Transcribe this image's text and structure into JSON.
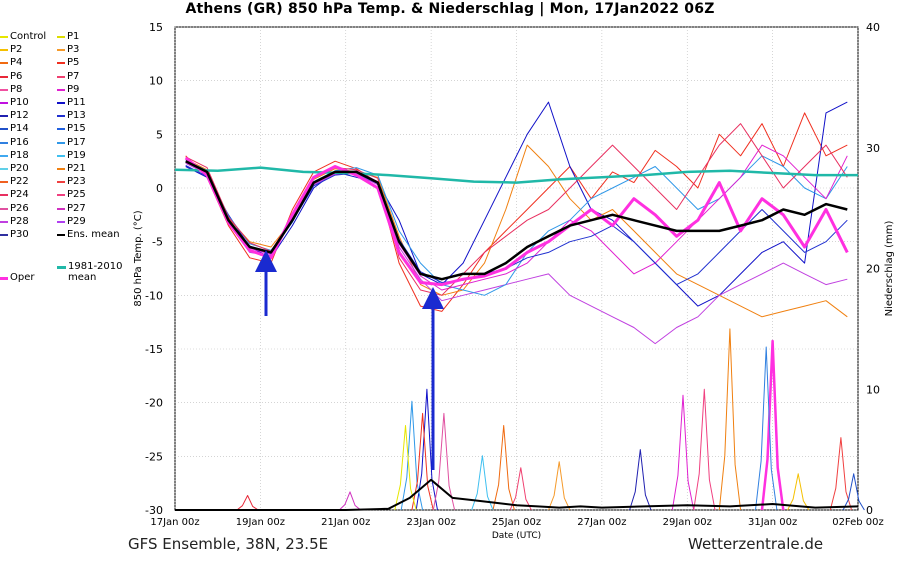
{
  "title": "Athens  (GR)  850 hPa Temp. & Niederschlag | Mon, 17Jan2022 06Z",
  "legend": [
    {
      "label": "Control",
      "color": "#e6e600"
    },
    {
      "label": "P1",
      "color": "#dddd00"
    },
    {
      "label": "P2",
      "color": "#f5c000"
    },
    {
      "label": "P3",
      "color": "#f59a2a"
    },
    {
      "label": "P4",
      "color": "#f06a10"
    },
    {
      "label": "P5",
      "color": "#f03020"
    },
    {
      "label": "P6",
      "color": "#e82838"
    },
    {
      "label": "P7",
      "color": "#f04070"
    },
    {
      "label": "P8",
      "color": "#f050a0"
    },
    {
      "label": "P9",
      "color": "#e020d0"
    },
    {
      "label": "P10",
      "color": "#c010e0"
    },
    {
      "label": "P11",
      "color": "#1010c8"
    },
    {
      "label": "P12",
      "color": "#2020b0"
    },
    {
      "label": "P13",
      "color": "#2030d0"
    },
    {
      "label": "P14",
      "color": "#2050c8"
    },
    {
      "label": "P15",
      "color": "#2060e0"
    },
    {
      "label": "P16",
      "color": "#3080e0"
    },
    {
      "label": "P17",
      "color": "#3098e8"
    },
    {
      "label": "P18",
      "color": "#40a8f0"
    },
    {
      "label": "P19",
      "color": "#40c0f0"
    },
    {
      "label": "P20",
      "color": "#60d0e8"
    },
    {
      "label": "P21",
      "color": "#f08010"
    },
    {
      "label": "P22",
      "color": "#f06020"
    },
    {
      "label": "P23",
      "color": "#f04040"
    },
    {
      "label": "P24",
      "color": "#e83060"
    },
    {
      "label": "P25",
      "color": "#f04080"
    },
    {
      "label": "P26",
      "color": "#e050a0"
    },
    {
      "label": "P27",
      "color": "#d030c0"
    },
    {
      "label": "P28",
      "color": "#c040e0"
    },
    {
      "label": "P29",
      "color": "#b040f0"
    },
    {
      "label": "P30",
      "color": "#3030a0"
    },
    {
      "label": "Ens. mean",
      "color": "#000000"
    }
  ],
  "legend_clim": {
    "label": "1981-2010\nmean",
    "color": "#20b8a8"
  },
  "legend_oper": {
    "label": "Oper",
    "color": "#ff30e0"
  },
  "footer_left": "GFS Ensemble, 38N, 23.5E",
  "footer_right": "Wetterzentrale.de",
  "chart_data": {
    "type": "line",
    "title": "Athens  (GR)  850 hPa Temp. & Niederschlag | Mon, 17Jan2022 06Z",
    "xlabel": "Date (UTC)",
    "ylabel": "850 hPa Temp. (°C)",
    "y2label": "Niederschlag (mm)",
    "xlim": [
      0,
      16
    ],
    "ylim": [
      -30,
      15
    ],
    "y2lim": [
      0,
      40
    ],
    "x_ticks": [
      0,
      2,
      4,
      6,
      8,
      10,
      12,
      14,
      16
    ],
    "x_tick_labels": [
      "17Jan 00z",
      "19Jan 00z",
      "21Jan 00z",
      "23Jan 00z",
      "25Jan 00z",
      "27Jan 00z",
      "29Jan 00z",
      "31Jan 00z",
      "02Feb 00z"
    ],
    "y_ticks": [
      15,
      10,
      5,
      0,
      -5,
      -10,
      -15,
      -20,
      -25,
      -30
    ],
    "y2_ticks": [
      40,
      30,
      20,
      10,
      0
    ],
    "grid": true,
    "ens_mean_temp": {
      "x": [
        0.25,
        0.75,
        1.25,
        1.75,
        2.25,
        2.75,
        3.25,
        3.75,
        4.25,
        4.75,
        5.25,
        5.75,
        6.25,
        6.75,
        7.25,
        7.75,
        8.25,
        8.75,
        9.25,
        9.75,
        10.25,
        10.75,
        11.25,
        11.75,
        12.25,
        12.75,
        13.25,
        13.75,
        14.25,
        14.75,
        15.25,
        15.75
      ],
      "y": [
        2.5,
        1.5,
        -3.0,
        -5.5,
        -6.0,
        -3.0,
        0.5,
        1.5,
        1.5,
        0.5,
        -5.0,
        -8.0,
        -8.5,
        -8.0,
        -8.0,
        -7.0,
        -5.5,
        -4.5,
        -3.5,
        -3.0,
        -2.5,
        -3.0,
        -3.5,
        -4.0,
        -4.0,
        -4.0,
        -3.5,
        -3.0,
        -2.0,
        -2.5,
        -1.5,
        -2.0
      ]
    },
    "oper_temp": {
      "x": [
        0.25,
        0.75,
        1.25,
        1.75,
        2.25,
        2.75,
        3.25,
        3.75,
        4.25,
        4.75,
        5.25,
        5.75,
        6.25,
        6.75,
        7.25,
        7.75,
        8.25,
        8.75,
        9.25,
        9.75,
        10.25,
        10.75,
        11.25,
        11.75,
        12.25,
        12.75,
        13.25,
        13.75,
        14.25,
        14.75,
        15.25,
        15.75
      ],
      "y": [
        2.8,
        1.2,
        -3.2,
        -5.8,
        -6.5,
        -2.5,
        1.0,
        2.0,
        1.2,
        0.0,
        -6.0,
        -8.8,
        -9.0,
        -8.5,
        -8.2,
        -7.5,
        -6.0,
        -5.0,
        -3.5,
        -2.0,
        -3.5,
        -1.0,
        -2.5,
        -4.5,
        -3.0,
        0.5,
        -4.0,
        -1.0,
        -2.5,
        -5.5,
        -2.0,
        -6.0
      ]
    },
    "clim_temp": {
      "x": [
        0,
        1,
        2,
        3,
        4,
        5,
        6,
        7,
        8,
        9,
        10,
        11,
        12,
        13,
        14,
        15,
        16
      ],
      "y": [
        1.7,
        1.6,
        1.9,
        1.5,
        1.4,
        1.2,
        0.9,
        0.6,
        0.5,
        0.8,
        1.0,
        1.2,
        1.5,
        1.6,
        1.4,
        1.2,
        1.2
      ]
    },
    "member_temp_series": [
      {
        "name": "P5",
        "color": "#f03020",
        "y": [
          3.0,
          1.0,
          -3.5,
          -6.5,
          -7.0,
          -2.0,
          1.5,
          2.5,
          1.8,
          0.5,
          -7.0,
          -11.0,
          -11.5,
          -9.0,
          -6.0,
          -4.0,
          -2.0,
          0.0,
          2.0,
          -1.0,
          1.5,
          0.5,
          3.5,
          2.0,
          0.0,
          5.0,
          3.0,
          6.0,
          2.0,
          7.0,
          3.0,
          4.0
        ]
      },
      {
        "name": "P11",
        "color": "#1010c8",
        "y": [
          2.0,
          1.0,
          -2.5,
          -5.5,
          -6.5,
          -3.5,
          0.0,
          1.5,
          1.0,
          0.5,
          -3.0,
          -8.0,
          -9.0,
          -7.0,
          -3.0,
          1.0,
          5.0,
          8.0,
          2.0,
          -2.0,
          -3.0,
          -5.0,
          -7.0,
          -9.0,
          -11.0,
          -10.0,
          -8.0,
          -6.0,
          -5.0,
          -7.0,
          7.0,
          8.0
        ]
      },
      {
        "name": "P21",
        "color": "#f08010",
        "y": [
          2.7,
          1.7,
          -2.8,
          -5.0,
          -5.5,
          -3.0,
          0.8,
          1.8,
          1.5,
          1.0,
          -4.5,
          -9.0,
          -10.0,
          -9.5,
          -7.0,
          -2.0,
          4.0,
          2.0,
          -1.0,
          -3.0,
          -2.0,
          -4.0,
          -6.0,
          -8.0,
          -9.0,
          -10.0,
          -11.0,
          -12.0,
          -11.5,
          -11.0,
          -10.5,
          -12.0
        ]
      },
      {
        "name": "P28",
        "color": "#c040e0",
        "y": [
          2.3,
          1.3,
          -3.3,
          -6.0,
          -6.3,
          -2.8,
          0.3,
          1.3,
          1.3,
          0.3,
          -5.5,
          -8.5,
          -10.5,
          -10.0,
          -9.5,
          -9.0,
          -8.5,
          -8.0,
          -10.0,
          -11.0,
          -12.0,
          -13.0,
          -14.5,
          -13.0,
          -12.0,
          -10.0,
          -9.0,
          -8.0,
          -7.0,
          -8.0,
          -9.0,
          -8.5
        ]
      },
      {
        "name": "P17",
        "color": "#3098e8",
        "y": [
          2.6,
          1.6,
          -2.6,
          -5.2,
          -5.8,
          -3.2,
          0.6,
          1.6,
          1.9,
          1.2,
          -4.0,
          -7.0,
          -9.0,
          -9.5,
          -10.0,
          -9.0,
          -6.0,
          -4.0,
          -3.0,
          -1.0,
          0.0,
          1.0,
          2.0,
          0.0,
          -2.0,
          -1.0,
          1.0,
          3.0,
          2.0,
          0.0,
          -1.0,
          2.0
        ]
      },
      {
        "name": "P9",
        "color": "#e020d0",
        "y": [
          2.4,
          1.4,
          -3.1,
          -5.6,
          -6.2,
          -2.9,
          0.4,
          1.4,
          1.6,
          0.6,
          -5.2,
          -8.2,
          -9.5,
          -9.0,
          -8.5,
          -8.0,
          -7.0,
          -5.0,
          -3.0,
          -4.0,
          -6.0,
          -8.0,
          -7.0,
          -5.0,
          -3.0,
          -1.0,
          1.0,
          4.0,
          3.0,
          1.0,
          -1.0,
          3.0
        ]
      },
      {
        "name": "P13",
        "color": "#2030d0",
        "y": [
          2.1,
          1.1,
          -2.9,
          -5.4,
          -6.1,
          -3.1,
          0.2,
          1.2,
          1.4,
          0.4,
          -4.8,
          -7.8,
          -8.8,
          -8.6,
          -8.0,
          -7.5,
          -6.5,
          -6.0,
          -5.0,
          -4.5,
          -3.5,
          -5.0,
          -7.0,
          -9.0,
          -8.0,
          -6.0,
          -4.0,
          -2.0,
          -4.0,
          -6.0,
          -5.0,
          -3.0
        ]
      },
      {
        "name": "P24",
        "color": "#e83060",
        "y": [
          2.9,
          1.9,
          -2.7,
          -5.1,
          -5.9,
          -2.7,
          0.9,
          1.9,
          1.7,
          0.9,
          -6.5,
          -9.5,
          -10.0,
          -8.0,
          -6.0,
          -4.5,
          -3.0,
          -2.0,
          0.0,
          2.0,
          4.0,
          2.0,
          0.0,
          -2.0,
          1.0,
          4.0,
          6.0,
          3.0,
          0.0,
          2.0,
          4.0,
          1.0
        ]
      }
    ],
    "ens_mean_precip": {
      "x": [
        0,
        1,
        2,
        3,
        4,
        5,
        5.5,
        6,
        6.5,
        7,
        7.5,
        8,
        8.5,
        9,
        9.5,
        10,
        11,
        12,
        13,
        14,
        15,
        16
      ],
      "y": [
        0,
        0,
        0,
        0,
        0,
        0.1,
        1.0,
        2.5,
        1.0,
        0.8,
        0.6,
        0.4,
        0.3,
        0.2,
        0.3,
        0.2,
        0.3,
        0.4,
        0.3,
        0.5,
        0.2,
        0.3
      ]
    },
    "member_precip_peaks": [
      {
        "name": "P21",
        "color": "#f08010",
        "x": 13.0,
        "y": 15.0
      },
      {
        "name": "Oper",
        "color": "#ff30e0",
        "x": 14.0,
        "y": 14.0
      },
      {
        "name": "P16",
        "color": "#3080e0",
        "x": 13.85,
        "y": 13.5
      },
      {
        "name": "P11",
        "color": "#1010c8",
        "x": 5.9,
        "y": 10.0
      },
      {
        "name": "P17",
        "color": "#3098e8",
        "x": 5.55,
        "y": 9.0
      },
      {
        "name": "P9",
        "color": "#e020d0",
        "x": 11.9,
        "y": 9.5
      },
      {
        "name": "P25",
        "color": "#f04080",
        "x": 12.4,
        "y": 10.0
      },
      {
        "name": "P4",
        "color": "#f06a10",
        "x": 7.7,
        "y": 7.0
      },
      {
        "name": "P5",
        "color": "#f03020",
        "x": 5.8,
        "y": 8.0
      },
      {
        "name": "P26",
        "color": "#e050a0",
        "x": 6.3,
        "y": 8.0
      },
      {
        "name": "P23",
        "color": "#f04040",
        "x": 15.6,
        "y": 6.0
      },
      {
        "name": "Control",
        "color": "#e6e600",
        "x": 5.4,
        "y": 7.0
      },
      {
        "name": "P2",
        "color": "#f5c000",
        "x": 14.6,
        "y": 3.0
      },
      {
        "name": "P3",
        "color": "#f59a2a",
        "x": 9.0,
        "y": 4.0
      },
      {
        "name": "P7",
        "color": "#f04070",
        "x": 8.1,
        "y": 3.5
      },
      {
        "name": "P12",
        "color": "#2020b0",
        "x": 10.9,
        "y": 5.0
      },
      {
        "name": "P14",
        "color": "#2050c8",
        "x": 15.9,
        "y": 3.0
      },
      {
        "name": "P19",
        "color": "#40c0f0",
        "x": 7.2,
        "y": 4.5
      },
      {
        "name": "P27",
        "color": "#d030c0",
        "x": 4.1,
        "y": 1.5
      },
      {
        "name": "P6",
        "color": "#e82838",
        "x": 1.7,
        "y": 1.2
      }
    ]
  }
}
